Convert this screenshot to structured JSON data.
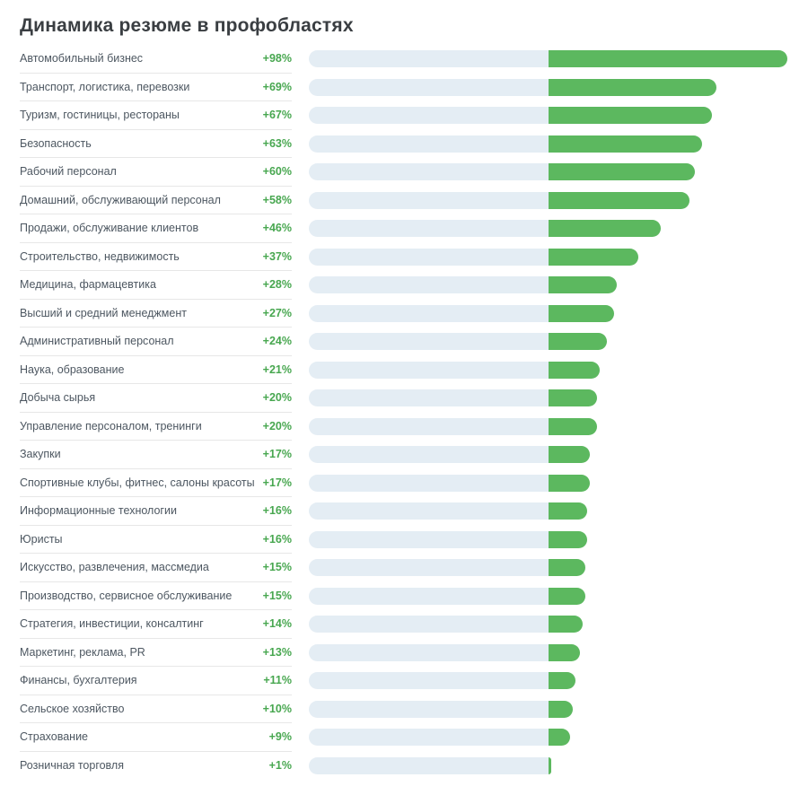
{
  "title": "Динамика резюме в профобластях",
  "colors": {
    "title_text": "#3a3e42",
    "label_text": "#4d5761",
    "value_text": "#48a750",
    "bar_fill": "#5cb85f",
    "bar_track": "#e4edf4",
    "divider": "#e7e7e7"
  },
  "chart_data": {
    "type": "bar",
    "orientation": "horizontal",
    "title": "Динамика резюме в профобластях",
    "xlabel": "",
    "ylabel": "",
    "unit": "% рост резюме",
    "xlim": [
      0,
      98
    ],
    "grid": false,
    "legend": false,
    "categories": [
      "Автомобильный бизнес",
      "Транспорт, логистика, перевозки",
      "Туризм, гостиницы, рестораны",
      "Безопасность",
      "Рабочий персонал",
      "Домашний, обслуживающий персонал",
      "Продажи, обслуживание клиентов",
      "Строительство, недвижимость",
      "Медицина, фармацевтика",
      "Высший и средний менеджмент",
      "Административный персонал",
      "Наука, образование",
      "Добыча сырья",
      "Управление персоналом, тренинги",
      "Закупки",
      "Спортивные клубы, фитнес, салоны красоты",
      "Информационные технологии",
      "Юристы",
      "Искусство, развлечения, массмедиа",
      "Производство, сервисное обслуживание",
      "Стратегия, инвестиции, консалтинг",
      "Маркетинг, реклама, PR",
      "Финансы, бухгалтерия",
      "Сельское хозяйство",
      "Страхование",
      "Розничная торговля"
    ],
    "values": [
      98,
      69,
      67,
      63,
      60,
      58,
      46,
      37,
      28,
      27,
      24,
      21,
      20,
      20,
      17,
      17,
      16,
      16,
      15,
      15,
      14,
      13,
      11,
      10,
      9,
      1
    ],
    "value_labels": [
      "+98%",
      "+69%",
      "+67%",
      "+63%",
      "+60%",
      "+58%",
      "+46%",
      "+37%",
      "+28%",
      "+27%",
      "+24%",
      "+21%",
      "+20%",
      "+20%",
      "+17%",
      "+17%",
      "+16%",
      "+16%",
      "+15%",
      "+15%",
      "+14%",
      "+13%",
      "+11%",
      "+10%",
      "+9%",
      "+1%"
    ]
  }
}
